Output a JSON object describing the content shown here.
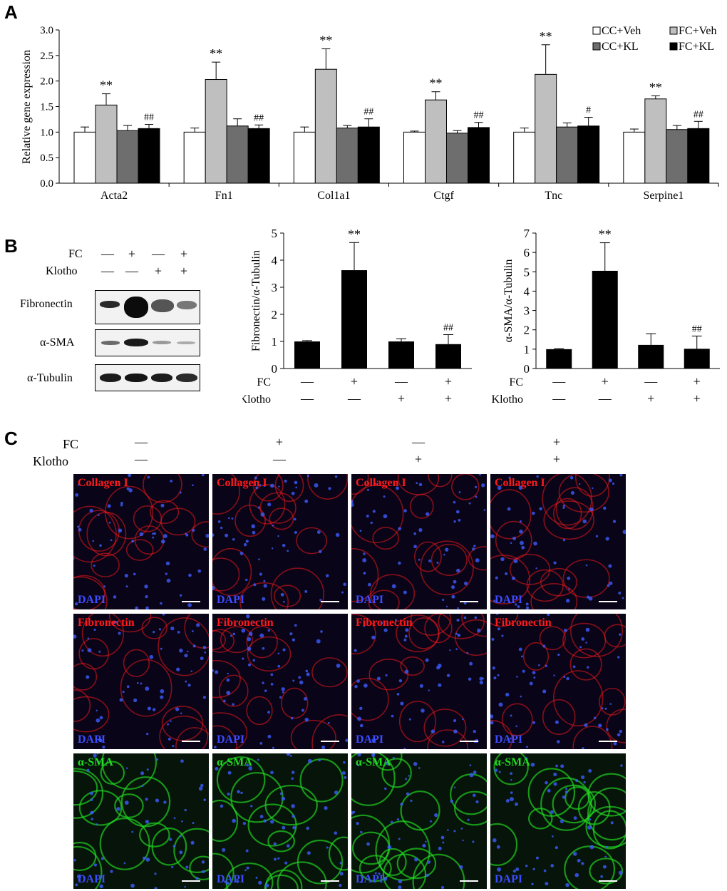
{
  "panels": {
    "a": "A",
    "b": "B",
    "c": "C"
  },
  "colors": {
    "cc_veh": "#ffffff",
    "fc_veh": "#bfbfbf",
    "cc_kl": "#6e6e6e",
    "fc_kl": "#000000"
  },
  "chart_data": [
    {
      "type": "bar",
      "ylabel": "Relative gene expression",
      "ylim": [
        0,
        3.0
      ],
      "yticks": [
        "0.0",
        "0.5",
        "1.0",
        "1.5",
        "2.0",
        "2.5",
        "3.0"
      ],
      "categories": [
        "Acta2",
        "Fn1",
        "Col1a1",
        "Ctgf",
        "Tnc",
        "Serpine1"
      ],
      "series": [
        {
          "name": "CC+Veh",
          "values": [
            1.0,
            1.0,
            1.0,
            1.0,
            1.0,
            1.0
          ],
          "errors": [
            0.1,
            0.08,
            0.1,
            0.02,
            0.08,
            0.06
          ]
        },
        {
          "name": "FC+Veh",
          "values": [
            1.53,
            2.03,
            2.23,
            1.63,
            2.13,
            1.65
          ],
          "errors": [
            0.22,
            0.34,
            0.4,
            0.16,
            0.58,
            0.06
          ]
        },
        {
          "name": "CC+KL",
          "values": [
            1.03,
            1.12,
            1.08,
            0.98,
            1.1,
            1.05
          ],
          "errors": [
            0.1,
            0.14,
            0.05,
            0.05,
            0.08,
            0.08
          ]
        },
        {
          "name": "FC+KL",
          "values": [
            1.07,
            1.07,
            1.1,
            1.09,
            1.12,
            1.07
          ],
          "errors": [
            0.08,
            0.07,
            0.16,
            0.1,
            0.17,
            0.14
          ]
        }
      ],
      "annotations": {
        "FC+Veh": [
          "**",
          "**",
          "**",
          "**",
          "**",
          "**"
        ],
        "FC+KL": [
          "##",
          "##",
          "##",
          "##",
          "#",
          "##"
        ]
      }
    },
    {
      "type": "bar",
      "ylabel": "Fibronectin/α-Tubulin",
      "ylim": [
        0,
        5
      ],
      "yticks": [
        "0",
        "1",
        "2",
        "3",
        "4",
        "5"
      ],
      "values": [
        1.0,
        3.63,
        1.0,
        0.9
      ],
      "errors": [
        0.03,
        1.02,
        0.1,
        0.35
      ],
      "annotations": [
        "",
        "**",
        "",
        "##"
      ]
    },
    {
      "type": "bar",
      "ylabel": "α-SMA/α-Tubulin",
      "ylim": [
        0,
        7
      ],
      "yticks": [
        "0",
        "1",
        "2",
        "3",
        "4",
        "5",
        "6",
        "7"
      ],
      "values": [
        1.0,
        5.05,
        1.22,
        1.02
      ],
      "errors": [
        0.03,
        1.45,
        0.58,
        0.66
      ],
      "annotations": [
        "",
        "**",
        "",
        "##"
      ]
    }
  ],
  "conditions": {
    "fc_label": "FC",
    "klotho_label": "Klotho",
    "fc": [
      "—",
      "+",
      "—",
      "+"
    ],
    "klotho": [
      "—",
      "—",
      "+",
      "+"
    ]
  },
  "blot": {
    "rows": [
      "Fibronectin",
      "α-SMA",
      "α-Tubulin"
    ]
  },
  "micro": {
    "rows": [
      {
        "stain": "Collagen I",
        "color": "#ff1a1a"
      },
      {
        "stain": "Fibronectin",
        "color": "#ff1a1a"
      },
      {
        "stain": "α-SMA",
        "color": "#22dd22"
      }
    ],
    "dapi": "DAPI"
  }
}
